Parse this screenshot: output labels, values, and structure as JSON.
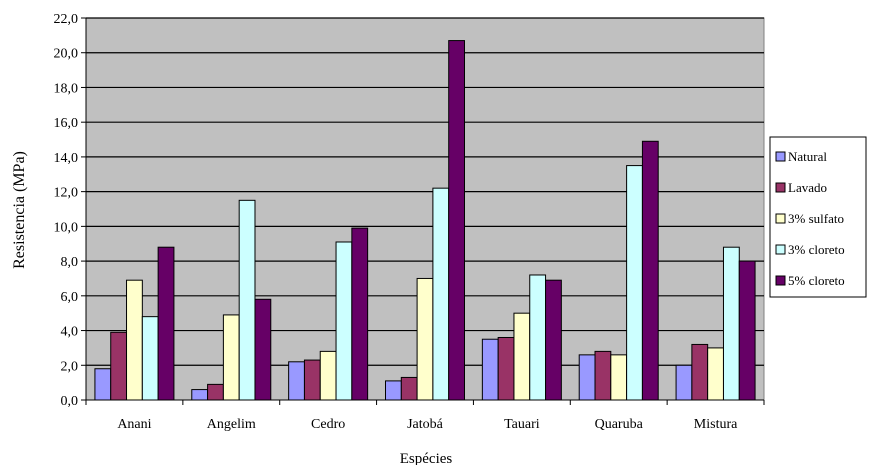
{
  "chart_data": {
    "type": "bar",
    "title": "",
    "xlabel": "Espécies",
    "ylabel": "Resistencia (MPa)",
    "ylim": [
      0,
      22
    ],
    "y_tick_step": 2,
    "y_tick_format": "comma-1-decimal",
    "grid": true,
    "plot_background": "#c0c0c0",
    "legend_position": "right",
    "categories": [
      "Anani",
      "Angelim",
      "Cedro",
      "Jatobá",
      "Tauari",
      "Quaruba",
      "Mistura"
    ],
    "series": [
      {
        "name": "Natural",
        "color": "#9999ff",
        "values": [
          1.8,
          0.6,
          2.2,
          1.1,
          3.5,
          2.6,
          2.0
        ]
      },
      {
        "name": "Lavado",
        "color": "#993366",
        "values": [
          3.9,
          0.9,
          2.3,
          1.3,
          3.6,
          2.8,
          3.2
        ]
      },
      {
        "name": "3% sulfato",
        "color": "#ffffcc",
        "values": [
          6.9,
          4.9,
          2.8,
          7.0,
          5.0,
          2.6,
          3.0
        ]
      },
      {
        "name": "3% cloreto",
        "color": "#ccffff",
        "values": [
          4.8,
          11.5,
          9.1,
          12.2,
          7.2,
          13.5,
          8.8
        ]
      },
      {
        "name": "5% cloreto",
        "color": "#660066",
        "values": [
          8.8,
          5.8,
          9.9,
          20.7,
          6.9,
          14.9,
          8.0
        ]
      }
    ]
  }
}
